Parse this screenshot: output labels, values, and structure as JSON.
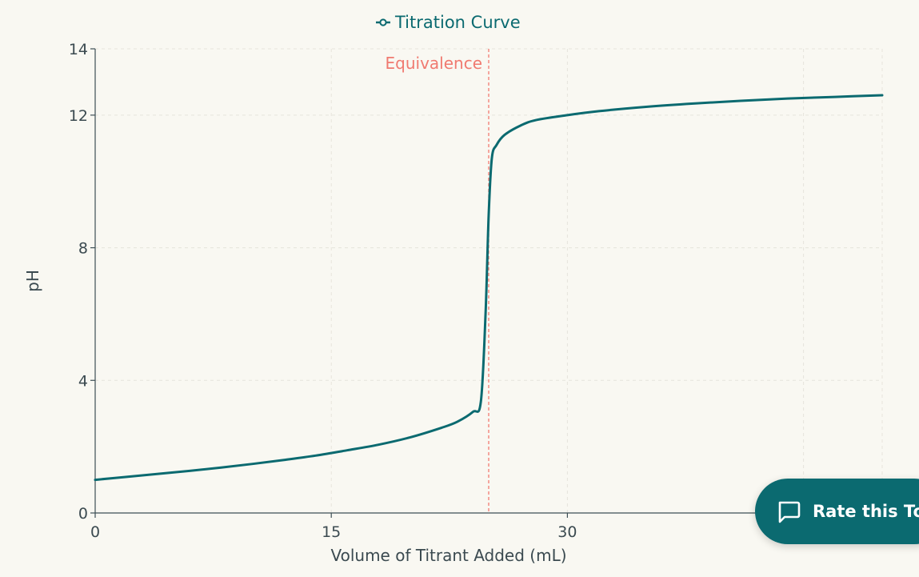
{
  "chart_data": {
    "type": "line",
    "title": "",
    "xlabel": "Volume of Titrant Added (mL)",
    "ylabel": "pH",
    "xlim": [
      0,
      50
    ],
    "ylim": [
      0,
      14
    ],
    "x_ticks": [
      0,
      15,
      30
    ],
    "y_ticks": [
      0,
      4,
      8,
      12,
      14
    ],
    "grid": true,
    "legend": "top-center",
    "series": [
      {
        "name": "Titration Curve",
        "color": "#0b6a70",
        "points": [
          [
            0,
            1.0
          ],
          [
            2,
            1.09
          ],
          [
            4,
            1.18
          ],
          [
            6,
            1.27
          ],
          [
            8,
            1.37
          ],
          [
            10,
            1.48
          ],
          [
            12,
            1.6
          ],
          [
            14,
            1.73
          ],
          [
            16,
            1.89
          ],
          [
            18,
            2.06
          ],
          [
            20,
            2.28
          ],
          [
            22,
            2.57
          ],
          [
            23,
            2.75
          ],
          [
            24,
            3.05
          ],
          [
            24.5,
            3.35
          ],
          [
            24.8,
            6.0
          ],
          [
            25,
            9.0
          ],
          [
            25.2,
            10.7
          ],
          [
            25.5,
            11.1
          ],
          [
            26,
            11.4
          ],
          [
            27,
            11.68
          ],
          [
            28,
            11.85
          ],
          [
            30,
            12.0
          ],
          [
            32,
            12.12
          ],
          [
            35,
            12.25
          ],
          [
            38,
            12.35
          ],
          [
            41,
            12.43
          ],
          [
            44,
            12.5
          ],
          [
            47,
            12.55
          ],
          [
            50,
            12.6
          ]
        ]
      }
    ],
    "annotations": [
      {
        "type": "vline",
        "x": 25,
        "label": "Equivalence",
        "color": "#f07a70"
      }
    ]
  },
  "rate_button": {
    "label": "Rate this Tool",
    "icon": "chat-bubble-icon"
  }
}
